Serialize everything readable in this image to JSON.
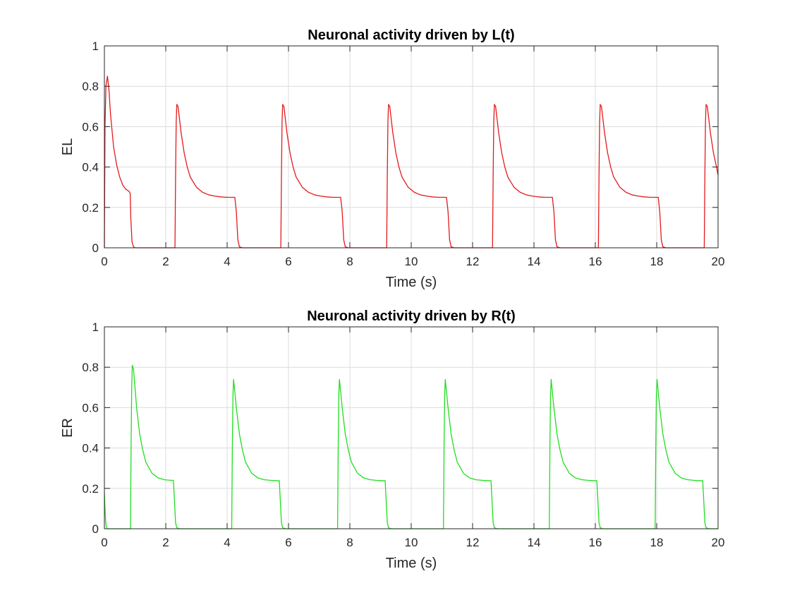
{
  "chart_data": [
    {
      "type": "line",
      "title": "Neuronal activity driven by L(t)",
      "xlabel": "Time (s)",
      "ylabel": "EL",
      "xlim": [
        0,
        20
      ],
      "ylim": [
        0,
        1
      ],
      "xticks": [
        "0",
        "2",
        "4",
        "6",
        "8",
        "10",
        "12",
        "14",
        "16",
        "18",
        "20"
      ],
      "yticks": [
        "0",
        "0.2",
        "0.4",
        "0.6",
        "0.8",
        "1"
      ],
      "grid": true,
      "series": [
        {
          "color": "#e41a1c",
          "x": [
            0,
            0.02,
            0.05,
            0.1,
            0.15,
            0.2,
            0.3,
            0.4,
            0.5,
            0.6,
            0.7,
            0.8,
            0.84,
            0.86,
            0.9,
            0.95,
            1.0,
            2.3,
            2.32,
            2.34,
            2.36,
            2.4,
            2.5,
            2.6,
            2.7,
            2.8,
            3.0,
            3.2,
            3.4,
            3.6,
            3.8,
            4.0,
            4.25,
            4.3,
            4.35,
            4.4,
            4.5,
            5.75,
            5.77,
            5.79,
            5.81,
            5.85,
            5.95,
            6.05,
            6.15,
            6.25,
            6.45,
            6.65,
            6.85,
            7.05,
            7.25,
            7.45,
            7.7,
            7.75,
            7.8,
            7.85,
            7.95,
            9.2,
            9.22,
            9.24,
            9.26,
            9.3,
            9.4,
            9.5,
            9.6,
            9.7,
            9.9,
            10.1,
            10.3,
            10.5,
            10.7,
            10.9,
            11.15,
            11.2,
            11.25,
            11.3,
            11.4,
            12.65,
            12.67,
            12.69,
            12.71,
            12.75,
            12.85,
            12.95,
            13.05,
            13.15,
            13.35,
            13.55,
            13.75,
            13.95,
            14.15,
            14.35,
            14.6,
            14.65,
            14.7,
            14.75,
            14.85,
            16.1,
            16.12,
            16.14,
            16.16,
            16.2,
            16.3,
            16.4,
            16.5,
            16.6,
            16.8,
            17.0,
            17.2,
            17.4,
            17.6,
            17.8,
            18.05,
            18.1,
            18.15,
            18.2,
            18.3,
            19.55,
            19.57,
            19.59,
            19.61,
            19.65,
            19.75,
            19.85,
            19.95,
            20.0
          ],
          "y": [
            0,
            0.6,
            0.8,
            0.85,
            0.78,
            0.66,
            0.5,
            0.41,
            0.35,
            0.31,
            0.29,
            0.28,
            0.27,
            0.15,
            0.03,
            0.005,
            0,
            0,
            0.35,
            0.62,
            0.71,
            0.7,
            0.57,
            0.47,
            0.4,
            0.35,
            0.3,
            0.275,
            0.262,
            0.256,
            0.252,
            0.25,
            0.25,
            0.18,
            0.04,
            0.005,
            0,
            0,
            0.35,
            0.62,
            0.71,
            0.7,
            0.57,
            0.47,
            0.4,
            0.35,
            0.3,
            0.275,
            0.262,
            0.256,
            0.252,
            0.25,
            0.25,
            0.18,
            0.04,
            0.005,
            0,
            0,
            0.35,
            0.62,
            0.71,
            0.7,
            0.57,
            0.47,
            0.4,
            0.35,
            0.3,
            0.275,
            0.262,
            0.256,
            0.252,
            0.25,
            0.25,
            0.18,
            0.04,
            0.005,
            0,
            0,
            0.35,
            0.62,
            0.71,
            0.7,
            0.57,
            0.47,
            0.4,
            0.35,
            0.3,
            0.275,
            0.262,
            0.256,
            0.252,
            0.25,
            0.25,
            0.18,
            0.04,
            0.005,
            0,
            0,
            0.35,
            0.62,
            0.71,
            0.7,
            0.57,
            0.47,
            0.4,
            0.35,
            0.3,
            0.275,
            0.262,
            0.256,
            0.252,
            0.25,
            0.25,
            0.18,
            0.04,
            0.005,
            0,
            0,
            0.35,
            0.62,
            0.71,
            0.7,
            0.57,
            0.47,
            0.4,
            0.36
          ]
        }
      ]
    },
    {
      "type": "line",
      "title": "Neuronal activity driven by R(t)",
      "xlabel": "Time (s)",
      "ylabel": "ER",
      "xlim": [
        0,
        20
      ],
      "ylim": [
        0,
        1
      ],
      "xticks": [
        "0",
        "2",
        "4",
        "6",
        "8",
        "10",
        "12",
        "14",
        "16",
        "18",
        "20"
      ],
      "yticks": [
        "0",
        "0.2",
        "0.4",
        "0.6",
        "0.8",
        "1"
      ],
      "grid": true,
      "series": [
        {
          "color": "#22dd22",
          "x": [
            0,
            0.02,
            0.04,
            0.06,
            0.1,
            0.85,
            0.87,
            0.89,
            0.91,
            0.95,
            1.05,
            1.15,
            1.25,
            1.35,
            1.55,
            1.75,
            1.95,
            2.15,
            2.25,
            2.28,
            2.32,
            2.36,
            2.45,
            4.15,
            4.17,
            4.19,
            4.21,
            4.3,
            4.4,
            4.5,
            4.6,
            4.8,
            5.0,
            5.2,
            5.4,
            5.6,
            5.7,
            5.73,
            5.77,
            5.81,
            5.9,
            7.6,
            7.62,
            7.64,
            7.66,
            7.75,
            7.85,
            7.95,
            8.05,
            8.25,
            8.45,
            8.65,
            8.85,
            9.05,
            9.15,
            9.18,
            9.22,
            9.26,
            9.35,
            11.05,
            11.07,
            11.09,
            11.11,
            11.2,
            11.3,
            11.4,
            11.5,
            11.7,
            11.9,
            12.1,
            12.3,
            12.5,
            12.6,
            12.63,
            12.67,
            12.71,
            12.8,
            14.5,
            14.52,
            14.54,
            14.56,
            14.65,
            14.75,
            14.85,
            14.95,
            15.15,
            15.35,
            15.55,
            15.75,
            15.95,
            16.05,
            16.08,
            16.12,
            16.16,
            16.25,
            17.95,
            17.97,
            17.99,
            18.01,
            18.1,
            18.2,
            18.3,
            18.4,
            18.6,
            18.8,
            19.0,
            19.2,
            19.4,
            19.5,
            19.53,
            19.57,
            19.61,
            19.7,
            20.0
          ],
          "y": [
            0.18,
            0.1,
            0.04,
            0.01,
            0,
            0,
            0.4,
            0.7,
            0.81,
            0.79,
            0.6,
            0.47,
            0.39,
            0.33,
            0.275,
            0.252,
            0.243,
            0.24,
            0.24,
            0.15,
            0.03,
            0.005,
            0,
            0,
            0.4,
            0.66,
            0.74,
            0.6,
            0.47,
            0.39,
            0.33,
            0.275,
            0.252,
            0.243,
            0.24,
            0.238,
            0.238,
            0.15,
            0.03,
            0.005,
            0,
            0,
            0.4,
            0.66,
            0.74,
            0.6,
            0.47,
            0.39,
            0.33,
            0.275,
            0.252,
            0.243,
            0.24,
            0.238,
            0.238,
            0.15,
            0.03,
            0.005,
            0,
            0,
            0.4,
            0.66,
            0.74,
            0.6,
            0.47,
            0.39,
            0.33,
            0.275,
            0.252,
            0.243,
            0.24,
            0.238,
            0.238,
            0.15,
            0.03,
            0.005,
            0,
            0,
            0.4,
            0.66,
            0.74,
            0.6,
            0.47,
            0.39,
            0.33,
            0.275,
            0.252,
            0.243,
            0.24,
            0.238,
            0.238,
            0.15,
            0.03,
            0.005,
            0,
            0,
            0.4,
            0.66,
            0.74,
            0.6,
            0.47,
            0.39,
            0.33,
            0.275,
            0.252,
            0.243,
            0.24,
            0.238,
            0.238,
            0.15,
            0.03,
            0.005,
            0,
            0
          ]
        }
      ]
    }
  ]
}
